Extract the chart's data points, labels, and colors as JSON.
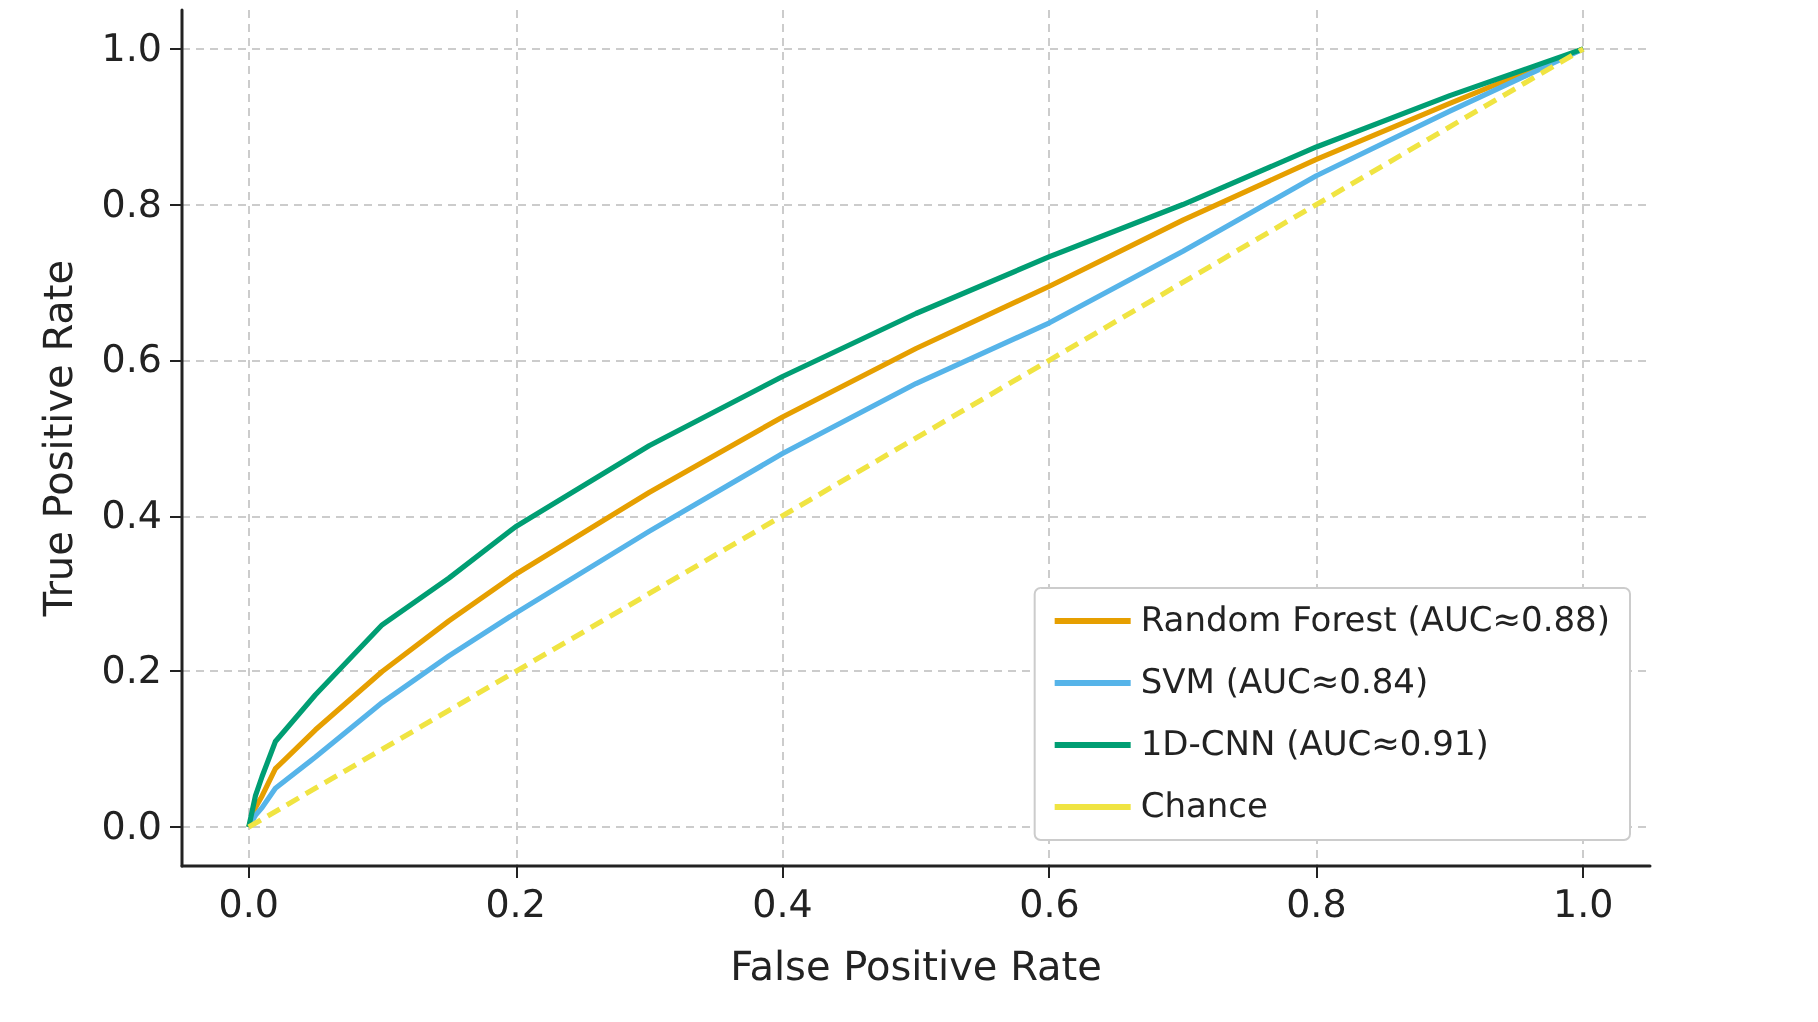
{
  "chart_data": {
    "type": "line",
    "xlabel": "False Positive Rate",
    "ylabel": "True Positive Rate",
    "xlim": [
      -0.05,
      1.05
    ],
    "ylim": [
      -0.05,
      1.05
    ],
    "xticks": [
      {
        "value": 0,
        "label": "0.0"
      },
      0.2,
      0.4,
      0.6,
      0.8,
      {
        "value": 1,
        "label": "1.0"
      }
    ],
    "yticks": [
      {
        "value": 0,
        "label": "0.0"
      },
      0.2,
      0.4,
      0.6,
      0.8,
      {
        "value": 1,
        "label": "1.0"
      }
    ],
    "grid": true,
    "legend": "bottom right",
    "marker": "none",
    "series": [
      {
        "name": "Random Forest (AUC≈0.88)",
        "color": "#e69f00",
        "line_style": "solid",
        "x": [
          0,
          0.005,
          0.01,
          0.02,
          0.05,
          0.1,
          0.15,
          0.2,
          0.3,
          0.4,
          0.5,
          0.6,
          0.7,
          0.8,
          0.9,
          1.0
        ],
        "values": [
          0,
          0.025,
          0.04,
          0.075,
          0.125,
          0.2,
          0.265,
          0.325,
          0.43,
          0.527,
          0.615,
          0.695,
          0.78,
          0.858,
          0.93,
          1
        ]
      },
      {
        "name": "SVM (AUC≈0.84)",
        "color": "#56b4e9",
        "line_style": "solid",
        "x": [
          0,
          0.005,
          0.01,
          0.02,
          0.05,
          0.1,
          0.15,
          0.2,
          0.3,
          0.4,
          0.5,
          0.6,
          0.7,
          0.8,
          0.9,
          1.0
        ],
        "values": [
          0,
          0.015,
          0.025,
          0.05,
          0.09,
          0.16,
          0.22,
          0.275,
          0.38,
          0.48,
          0.57,
          0.648,
          0.74,
          0.837,
          0.92,
          1
        ]
      },
      {
        "name": "1D-CNN (AUC≈0.91)",
        "color": "#009e73",
        "line_style": "solid",
        "x": [
          0,
          0.005,
          0.01,
          0.02,
          0.05,
          0.1,
          0.15,
          0.2,
          0.3,
          0.4,
          0.5,
          0.6,
          0.7,
          0.8,
          0.9,
          1.0
        ],
        "values": [
          0,
          0.04,
          0.065,
          0.11,
          0.17,
          0.26,
          0.32,
          0.386,
          0.49,
          0.579,
          0.66,
          0.733,
          0.8,
          0.874,
          0.94,
          1
        ]
      },
      {
        "name": "Chance",
        "color": "#f0e442",
        "line_style": "dashed",
        "x": [
          0,
          1
        ],
        "values": [
          0,
          1
        ]
      }
    ]
  }
}
